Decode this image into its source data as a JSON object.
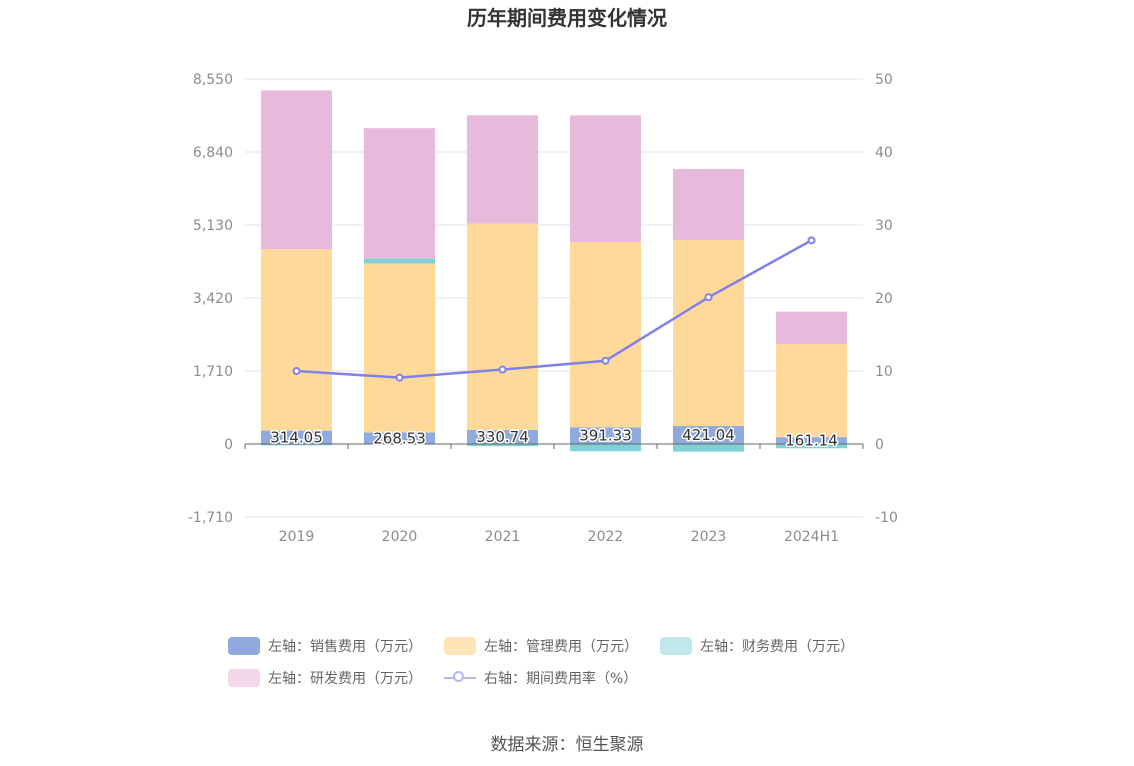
{
  "title": "历年期间费用变化情况",
  "source": "数据来源：恒生聚源",
  "colors": {
    "sales": "#8faadc",
    "admin": "#ffd99a",
    "finance": "#7fd1d6",
    "rnd": "#e8b9da",
    "rate": "#8080ea",
    "grid": "#e0e3ef",
    "axis": "#666666"
  },
  "legend": [
    {
      "label": "左轴：销售费用（万元）",
      "color": "#8faadc",
      "kind": "bar"
    },
    {
      "label": "左轴：管理费用（万元）",
      "color": "#ffe4b8",
      "kind": "bar"
    },
    {
      "label": "左轴：财务费用（万元）",
      "color": "#bfe8ea",
      "kind": "bar"
    },
    {
      "label": "左轴：研发费用（万元）",
      "color": "#f3d6ea",
      "kind": "bar"
    },
    {
      "label": "右轴：期间费用率（%）",
      "color": "#b3b8f0",
      "kind": "line"
    }
  ],
  "chart_data": {
    "type": "bar",
    "stacked": true,
    "categories": [
      "2019",
      "2020",
      "2021",
      "2022",
      "2023",
      "2024H1"
    ],
    "left_axis": {
      "min": -1710,
      "max": 8550,
      "ticks": [
        "8,550",
        "6,840",
        "5,130",
        "3,420",
        "1,710",
        "0",
        "-1,710"
      ],
      "tick_values": [
        8550,
        6840,
        5130,
        3420,
        1710,
        0,
        -1710
      ]
    },
    "right_axis": {
      "min": -10,
      "max": 50,
      "ticks": [
        "50",
        "40",
        "30",
        "20",
        "10",
        "0",
        "-10"
      ],
      "tick_values": [
        50,
        40,
        30,
        20,
        10,
        0,
        -10
      ]
    },
    "series": [
      {
        "name": "左轴：销售费用（万元）",
        "axis": "left",
        "type": "bar",
        "values": [
          314.05,
          268.53,
          330.74,
          391.33,
          421.04,
          161.14
        ],
        "labels": [
          "314.05",
          "268.53",
          "330.74",
          "391.33",
          "421.04",
          "161.14"
        ]
      },
      {
        "name": "左轴：管理费用（万元）",
        "axis": "left",
        "type": "bar",
        "values": [
          4250,
          3960,
          4830,
          4340,
          4360,
          2180
        ]
      },
      {
        "name": "左轴：财务费用（万元）",
        "axis": "left",
        "type": "bar",
        "values": [
          -30,
          120,
          -50,
          -170,
          -180,
          -100
        ]
      },
      {
        "name": "左轴：研发费用（万元）",
        "axis": "left",
        "type": "bar",
        "values": [
          3720,
          3050,
          2540,
          2970,
          1660,
          760
        ]
      },
      {
        "name": "右轴：期间费用率（%）",
        "axis": "right",
        "type": "line",
        "values": [
          10.0,
          9.1,
          10.2,
          11.4,
          20.1,
          27.9
        ]
      }
    ],
    "grid": true,
    "legend_position": "bottom"
  }
}
